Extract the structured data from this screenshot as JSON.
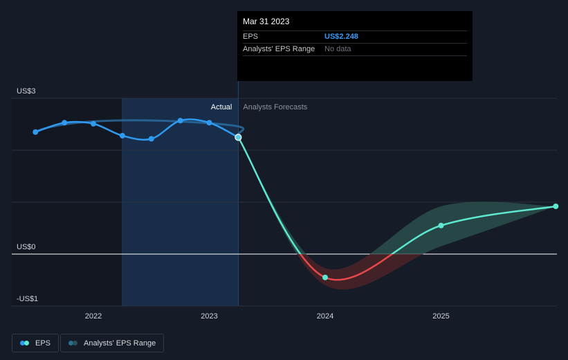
{
  "chart_data": {
    "type": "line",
    "x_ticks": [
      2022,
      2023,
      2024,
      2025
    ],
    "y_ticks": [
      {
        "value": 3,
        "label": "US$3"
      },
      {
        "value": 0,
        "label": "US$0"
      },
      {
        "value": -1,
        "label": "-US$1"
      }
    ],
    "ylim": [
      -1,
      3
    ],
    "xlim": [
      2021.35,
      2025.99
    ],
    "divider_labels": {
      "actual": "Actual",
      "forecast": "Analysts Forecasts"
    },
    "series": [
      {
        "name": "EPS",
        "kind": "actual",
        "points": [
          {
            "x": 2021.5,
            "y": 2.35
          },
          {
            "x": 2021.75,
            "y": 2.53
          },
          {
            "x": 2022.0,
            "y": 2.51
          },
          {
            "x": 2022.25,
            "y": 2.28
          },
          {
            "x": 2022.5,
            "y": 2.22
          },
          {
            "x": 2022.75,
            "y": 2.57
          },
          {
            "x": 2023.0,
            "y": 2.53
          },
          {
            "x": 2023.25,
            "y": 2.248
          }
        ]
      },
      {
        "name": "EPS",
        "kind": "forecast",
        "points": [
          {
            "x": 2023.25,
            "y": 2.248
          },
          {
            "x": 2024.0,
            "y": -0.45
          },
          {
            "x": 2025.0,
            "y": 0.55
          },
          {
            "x": 2025.99,
            "y": 0.92
          }
        ]
      },
      {
        "name": "Analysts' EPS Range",
        "kind": "range",
        "upper": [
          {
            "x": 2023.25,
            "y": 2.248
          },
          {
            "x": 2024.0,
            "y": -0.27
          },
          {
            "x": 2025.0,
            "y": 0.92
          },
          {
            "x": 2025.99,
            "y": 0.92
          }
        ],
        "lower": [
          {
            "x": 2023.25,
            "y": 2.248
          },
          {
            "x": 2024.0,
            "y": -0.6
          },
          {
            "x": 2025.0,
            "y": 0.15
          },
          {
            "x": 2025.99,
            "y": 0.92
          }
        ]
      }
    ],
    "colors": {
      "actual": "#2f9bf0",
      "forecast_positive": "#5de8d2",
      "forecast_negative": "#e8484b",
      "range_positive": "#2e5652",
      "range_negative": "#4a2327",
      "actual_band": "#173050",
      "grid": "#2c3140",
      "zero_line": "#ffffff",
      "axis_text": "#d0d3d8"
    }
  },
  "tooltip": {
    "date": "Mar 31 2023",
    "rows": [
      {
        "label": "EPS",
        "value": "US$2.248"
      },
      {
        "label": "Analysts' EPS Range",
        "value": "No data"
      }
    ]
  },
  "legend": [
    {
      "label": "EPS",
      "icon": "eps-swatch",
      "colors": [
        "#2f9bf0",
        "#5de8d2"
      ]
    },
    {
      "label": "Analysts' EPS Range",
      "icon": "range-swatch",
      "colors": [
        "#2a6f8f",
        "#295058"
      ]
    }
  ]
}
